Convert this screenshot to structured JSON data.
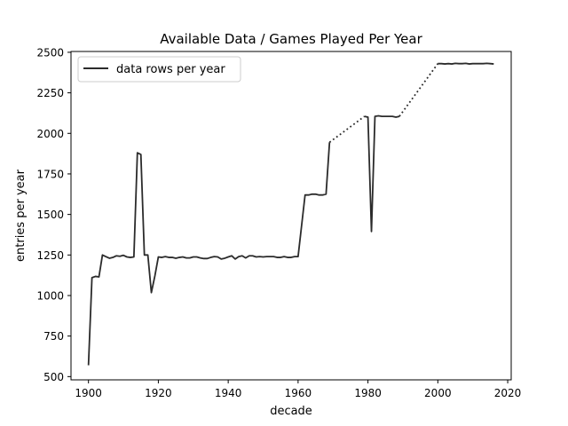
{
  "chart_data": {
    "type": "line",
    "title": "Available Data / Games Played Per Year",
    "xlabel": "decade",
    "ylabel": "entries per year",
    "xlim": [
      1895,
      2021
    ],
    "ylim": [
      480,
      2505
    ],
    "xticks": [
      "1900",
      "1920",
      "1940",
      "1960",
      "1980",
      "2000",
      "2020"
    ],
    "yticks": [
      "500",
      "750",
      "1000",
      "1250",
      "1500",
      "1750",
      "2000",
      "2250",
      "2500"
    ],
    "grid": false,
    "legend": {
      "position": "top-left",
      "entries": [
        "data rows per year"
      ]
    },
    "line_color": "#2b2b2b",
    "series": [
      {
        "name": "data rows per year",
        "style": "solid",
        "segments": [
          [
            [
              1900,
              570
            ],
            [
              1901,
              1110
            ],
            [
              1902,
              1118
            ],
            [
              1903,
              1115
            ],
            [
              1904,
              1250
            ],
            [
              1905,
              1240
            ],
            [
              1906,
              1230
            ],
            [
              1907,
              1235
            ],
            [
              1908,
              1245
            ],
            [
              1909,
              1242
            ],
            [
              1910,
              1248
            ],
            [
              1911,
              1238
            ],
            [
              1912,
              1235
            ],
            [
              1913,
              1238
            ],
            [
              1914,
              1880
            ],
            [
              1915,
              1870
            ],
            [
              1916,
              1250
            ],
            [
              1917,
              1250
            ],
            [
              1918,
              1018
            ],
            [
              1919,
              1120
            ],
            [
              1920,
              1238
            ],
            [
              1921,
              1235
            ],
            [
              1922,
              1240
            ],
            [
              1923,
              1235
            ],
            [
              1924,
              1235
            ],
            [
              1925,
              1230
            ],
            [
              1926,
              1235
            ],
            [
              1927,
              1238
            ],
            [
              1928,
              1232
            ],
            [
              1929,
              1232
            ],
            [
              1930,
              1238
            ],
            [
              1931,
              1238
            ],
            [
              1932,
              1232
            ],
            [
              1933,
              1228
            ],
            [
              1934,
              1228
            ],
            [
              1935,
              1235
            ],
            [
              1936,
              1240
            ],
            [
              1937,
              1238
            ],
            [
              1938,
              1225
            ],
            [
              1939,
              1230
            ],
            [
              1940,
              1238
            ],
            [
              1941,
              1245
            ],
            [
              1942,
              1225
            ],
            [
              1943,
              1240
            ],
            [
              1944,
              1245
            ],
            [
              1945,
              1232
            ],
            [
              1946,
              1245
            ],
            [
              1947,
              1245
            ],
            [
              1948,
              1238
            ],
            [
              1949,
              1240
            ],
            [
              1950,
              1238
            ],
            [
              1951,
              1240
            ],
            [
              1952,
              1240
            ],
            [
              1953,
              1240
            ],
            [
              1954,
              1235
            ],
            [
              1955,
              1235
            ],
            [
              1956,
              1240
            ],
            [
              1957,
              1235
            ],
            [
              1958,
              1235
            ],
            [
              1959,
              1240
            ],
            [
              1960,
              1240
            ],
            [
              1961,
              1430
            ],
            [
              1962,
              1620
            ],
            [
              1963,
              1620
            ],
            [
              1964,
              1625
            ],
            [
              1965,
              1625
            ],
            [
              1966,
              1620
            ],
            [
              1967,
              1620
            ],
            [
              1968,
              1625
            ],
            [
              1969,
              1945
            ]
          ],
          [
            [
              1979,
              2105
            ],
            [
              1980,
              2100
            ],
            [
              1981,
              1395
            ],
            [
              1982,
              2105
            ],
            [
              1983,
              2108
            ],
            [
              1984,
              2105
            ],
            [
              1985,
              2105
            ],
            [
              1986,
              2105
            ],
            [
              1987,
              2105
            ],
            [
              1988,
              2100
            ],
            [
              1989,
              2105
            ]
          ],
          [
            [
              2000,
              2430
            ],
            [
              2001,
              2430
            ],
            [
              2002,
              2428
            ],
            [
              2003,
              2430
            ],
            [
              2004,
              2428
            ],
            [
              2005,
              2432
            ],
            [
              2006,
              2430
            ],
            [
              2007,
              2430
            ],
            [
              2008,
              2432
            ],
            [
              2009,
              2428
            ],
            [
              2010,
              2430
            ],
            [
              2011,
              2430
            ],
            [
              2012,
              2430
            ],
            [
              2013,
              2430
            ],
            [
              2014,
              2432
            ],
            [
              2015,
              2430
            ],
            [
              2016,
              2428
            ]
          ]
        ]
      },
      {
        "style": "dotted",
        "segments": [
          [
            [
              1969,
              1945
            ],
            [
              1979,
              2105
            ]
          ],
          [
            [
              1989,
              2105
            ],
            [
              2000,
              2430
            ]
          ]
        ]
      }
    ]
  }
}
